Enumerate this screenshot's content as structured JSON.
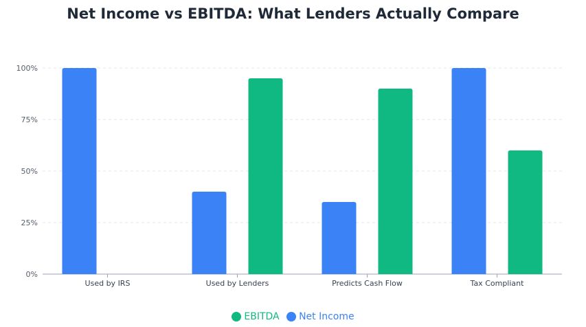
{
  "title": "Net Income vs EBITDA: What Lenders Actually Compare",
  "chart_data": {
    "type": "bar",
    "title": "Net Income vs EBITDA: What Lenders Actually Compare",
    "categories": [
      "Used by IRS",
      "Used by Lenders",
      "Predicts Cash Flow",
      "Tax Compliant"
    ],
    "series": [
      {
        "name": "Net Income",
        "color": "#3b82f6",
        "values": [
          100,
          40,
          35,
          100
        ]
      },
      {
        "name": "EBITDA",
        "color": "#10b981",
        "values": [
          0,
          95,
          90,
          60
        ]
      }
    ],
    "y_ticks": [
      "0%",
      "25%",
      "50%",
      "75%",
      "100%"
    ],
    "ylim": [
      0,
      100
    ],
    "grid": true,
    "legend_position": "bottom",
    "legend": [
      {
        "name": "EBITDA",
        "color": "#10b981"
      },
      {
        "name": "Net Income",
        "color": "#3b82f6"
      }
    ]
  }
}
